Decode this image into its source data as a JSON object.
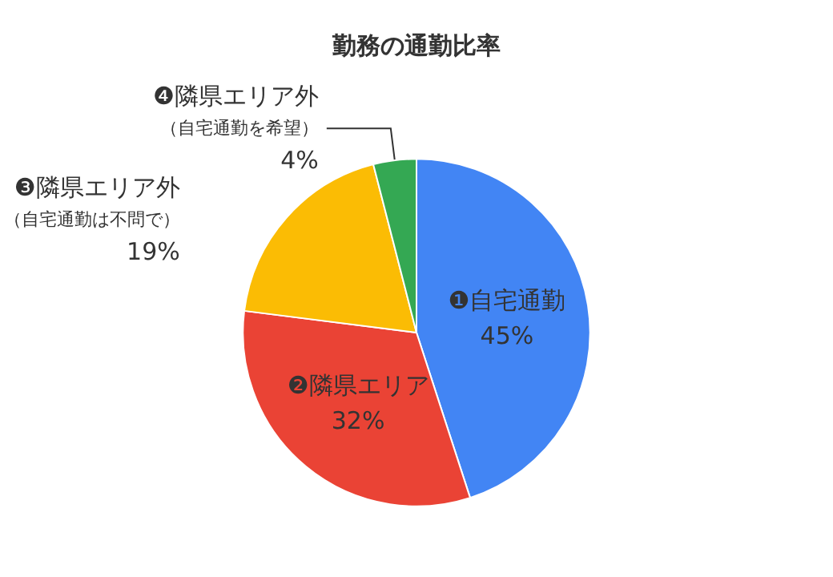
{
  "chart_data": {
    "type": "pie",
    "title": "勤務の通勤比率",
    "categories": [
      "❶自宅通勤",
      "❷隣県エリア",
      "❸隣県エリア外",
      "❹隣県エリア外"
    ],
    "annotations": [
      {
        "text": "（自宅通勤は不問で）",
        "x": "❸隣県エリア外"
      },
      {
        "text": "（自宅通勤を希望）",
        "x": "❹隣県エリア外"
      }
    ],
    "values": [
      45,
      32,
      19,
      4
    ],
    "colors": [
      "#4285f4",
      "#ea4335",
      "#fbbc04",
      "#34a853"
    ],
    "value_labels": [
      "45%",
      "32%",
      "19%",
      "4%"
    ],
    "legend": false
  }
}
